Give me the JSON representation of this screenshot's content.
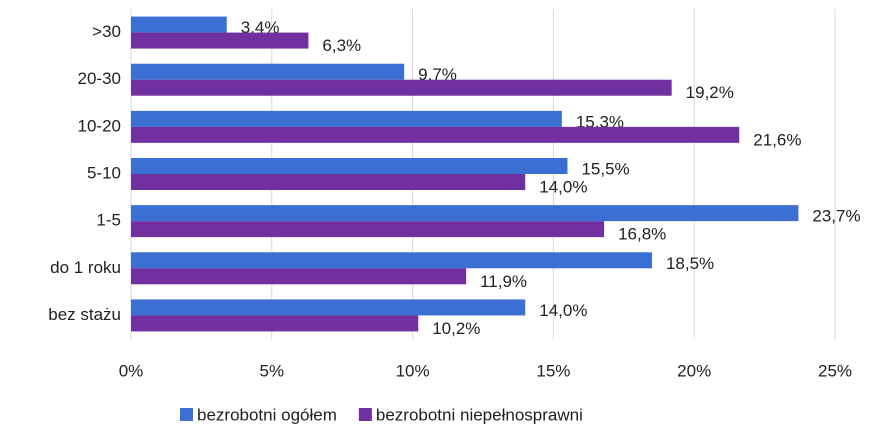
{
  "chart_data": {
    "type": "bar",
    "orientation": "horizontal",
    "categories": [
      ">30",
      "20-30",
      "10-20",
      "5-10",
      "1-5",
      "do 1 roku",
      "bez stażu"
    ],
    "series": [
      {
        "name": "bezrobotni ogółem",
        "color": "#3b6fd4",
        "values": [
          3.4,
          9.7,
          15.3,
          15.5,
          23.7,
          18.5,
          14.0
        ],
        "value_labels": [
          "3,4%",
          "9,7%",
          "15,3%",
          "15,5%",
          "23,7%",
          "18,5%",
          "14,0%"
        ]
      },
      {
        "name": "bezrobotni niepełnosprawni",
        "color": "#7030a0",
        "values": [
          6.3,
          19.2,
          21.6,
          14.0,
          16.8,
          11.9,
          10.2
        ],
        "value_labels": [
          "6,3%",
          "19,2%",
          "21,6%",
          "14,0%",
          "16,8%",
          "11,9%",
          "10,2%"
        ]
      }
    ],
    "xlim": [
      0,
      25
    ],
    "xticks": [
      {
        "value": 0,
        "label": "0%"
      },
      {
        "value": 5,
        "label": "5%"
      },
      {
        "value": 10,
        "label": "10%"
      },
      {
        "value": 15,
        "label": "15%"
      },
      {
        "value": 20,
        "label": "20%"
      },
      {
        "value": 25,
        "label": "25%"
      }
    ],
    "grid": true,
    "legend": "bottom"
  }
}
